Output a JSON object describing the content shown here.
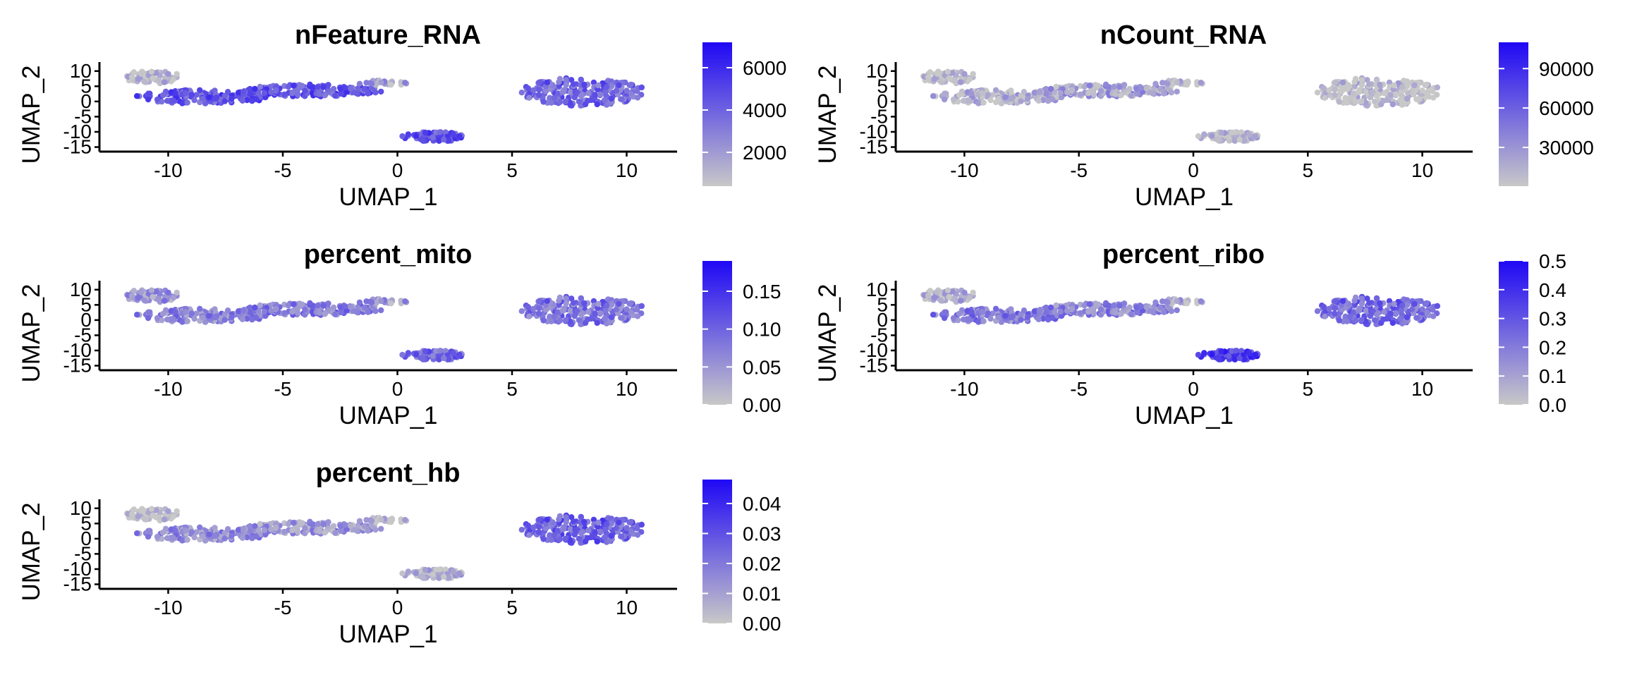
{
  "figure": {
    "panels": [
      {
        "title": "nFeature_RNA"
      },
      {
        "title": "nCount_RNA"
      },
      {
        "title": "percent_mito"
      },
      {
        "title": "percent_ribo"
      },
      {
        "title": "percent_hb"
      }
    ]
  },
  "chart_data": [
    {
      "type": "scatter",
      "title": "nFeature_RNA",
      "xlabel": "UMAP_1",
      "ylabel": "UMAP_2",
      "xlim": [
        -13,
        12.2
      ],
      "ylim": [
        -16.5,
        12.5
      ],
      "x_ticks": [
        -10,
        -5,
        0,
        5,
        10
      ],
      "y_ticks": [
        10,
        5,
        0,
        -5,
        -10,
        -15
      ],
      "grid": false,
      "color_scale": {
        "low": "#c8c8c8",
        "high": "#1f08f5",
        "min": 400,
        "max": 7200,
        "ticks": [
          2000,
          4000,
          6000
        ]
      },
      "legend_position": "right",
      "cluster_levels": [
        0.05,
        0.6,
        0.6,
        0.2,
        0.62,
        0.52
      ]
    },
    {
      "type": "scatter",
      "title": "nCount_RNA",
      "xlabel": "UMAP_1",
      "ylabel": "UMAP_2",
      "xlim": [
        -13,
        12.2
      ],
      "ylim": [
        -16.5,
        12.5
      ],
      "x_ticks": [
        -10,
        -5,
        0,
        5,
        10
      ],
      "y_ticks": [
        10,
        5,
        0,
        -5,
        -10,
        -15
      ],
      "grid": false,
      "color_scale": {
        "low": "#c8c8c8",
        "high": "#1f08f5",
        "min": 500,
        "max": 110000,
        "ticks": [
          30000,
          60000,
          90000
        ]
      },
      "legend_position": "right",
      "cluster_levels": [
        0.02,
        0.1,
        0.2,
        0.05,
        0.05,
        0.03
      ]
    },
    {
      "type": "scatter",
      "title": "percent_mito",
      "xlabel": "UMAP_1",
      "ylabel": "UMAP_2",
      "xlim": [
        -13,
        12.2
      ],
      "ylim": [
        -16.5,
        12.5
      ],
      "x_ticks": [
        -10,
        -5,
        0,
        5,
        10
      ],
      "y_ticks": [
        10,
        5,
        0,
        -5,
        -10,
        -15
      ],
      "grid": false,
      "color_scale": {
        "low": "#c8c8c8",
        "high": "#1f08f5",
        "min": 0,
        "max": 0.19,
        "ticks": [
          0.0,
          0.05,
          0.1,
          0.15
        ],
        "tick_labels": [
          "0.00",
          "0.05",
          "0.10",
          "0.15"
        ]
      },
      "legend_position": "right",
      "cluster_levels": [
        0.25,
        0.35,
        0.4,
        0.25,
        0.5,
        0.45
      ]
    },
    {
      "type": "scatter",
      "title": "percent_ribo",
      "xlabel": "UMAP_1",
      "ylabel": "UMAP_2",
      "xlim": [
        -13,
        12.2
      ],
      "ylim": [
        -16.5,
        12.5
      ],
      "x_ticks": [
        -10,
        -5,
        0,
        5,
        10
      ],
      "y_ticks": [
        10,
        5,
        0,
        -5,
        -10,
        -15
      ],
      "grid": false,
      "color_scale": {
        "low": "#c8c8c8",
        "high": "#1f08f5",
        "min": 0,
        "max": 0.5,
        "ticks": [
          0.0,
          0.1,
          0.2,
          0.3,
          0.4,
          0.5
        ],
        "tick_labels": [
          "0.0",
          "0.1",
          "0.2",
          "0.3",
          "0.4",
          "0.5"
        ]
      },
      "legend_position": "right",
      "cluster_levels": [
        0.1,
        0.4,
        0.35,
        0.15,
        0.72,
        0.5
      ]
    },
    {
      "type": "scatter",
      "title": "percent_hb",
      "xlabel": "UMAP_1",
      "ylabel": "UMAP_2",
      "xlim": [
        -13,
        12.2
      ],
      "ylim": [
        -16.5,
        12.5
      ],
      "x_ticks": [
        -10,
        -5,
        0,
        5,
        10
      ],
      "y_ticks": [
        10,
        5,
        0,
        -5,
        -10,
        -15
      ],
      "grid": false,
      "color_scale": {
        "low": "#c8c8c8",
        "high": "#1f08f5",
        "min": 0,
        "max": 0.048,
        "ticks": [
          0.0,
          0.01,
          0.02,
          0.03,
          0.04
        ],
        "tick_labels": [
          "0.00",
          "0.01",
          "0.02",
          "0.03",
          "0.04"
        ]
      },
      "legend_position": "right",
      "cluster_levels": [
        0.0,
        0.3,
        0.25,
        0.05,
        0.1,
        0.55
      ]
    }
  ]
}
